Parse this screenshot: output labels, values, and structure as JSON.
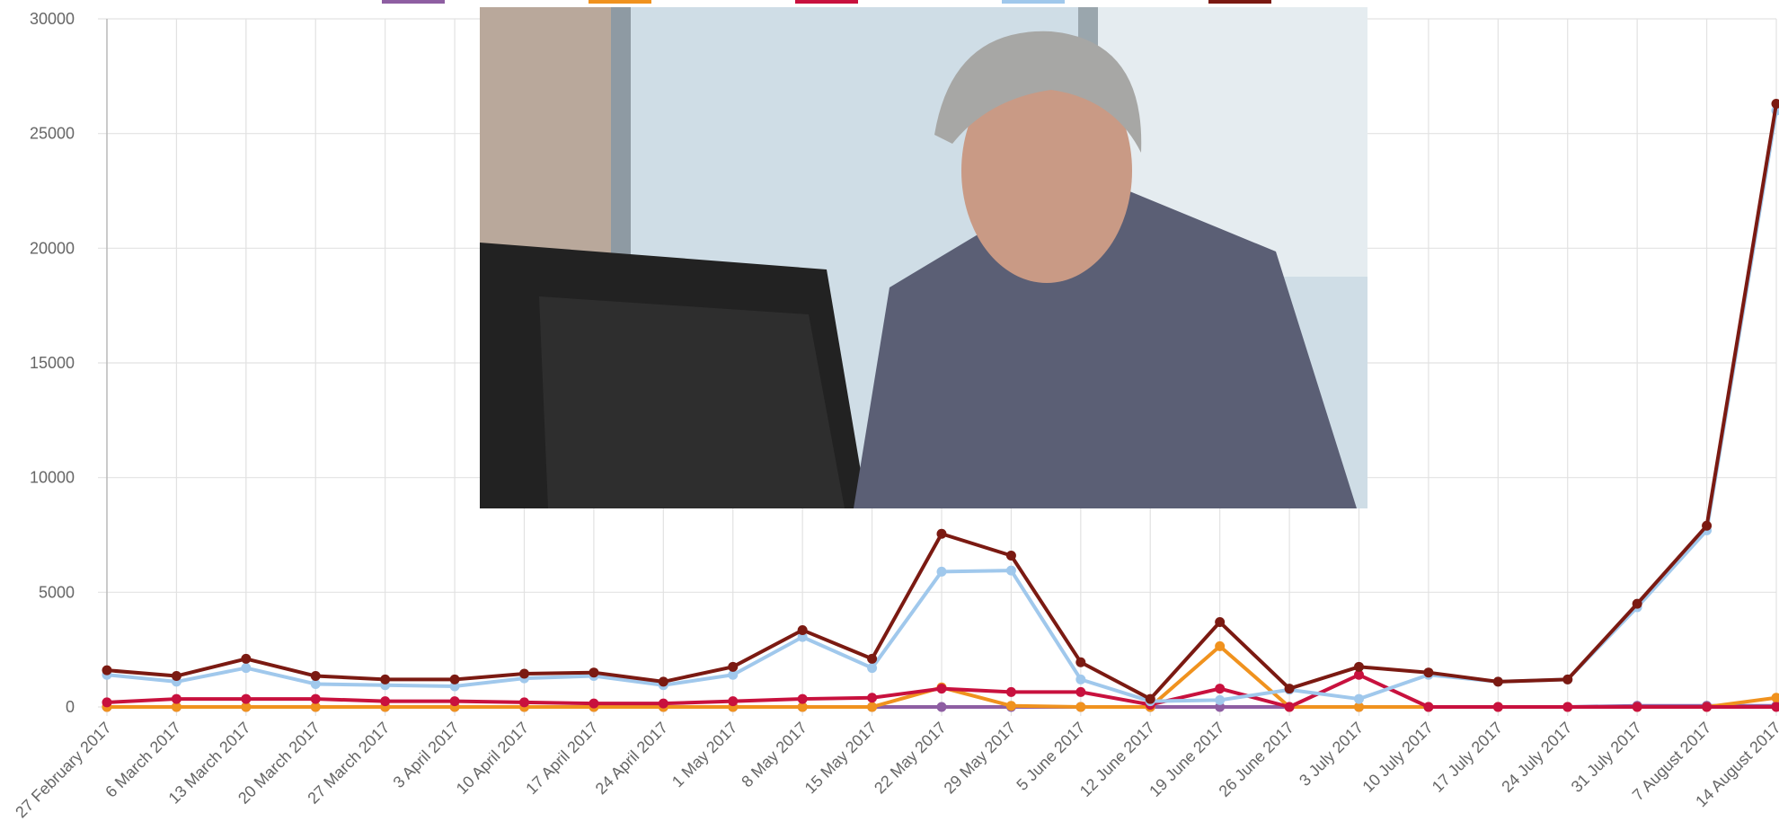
{
  "chart_data": {
    "type": "line",
    "categories": [
      "27 February 2017",
      "6 March 2017",
      "13 March 2017",
      "20 March 2017",
      "27 March 2017",
      "3 April 2017",
      "10 April 2017",
      "17 April 2017",
      "24 April 2017",
      "1 May 2017",
      "8 May 2017",
      "15 May 2017",
      "22 May 2017",
      "29 May 2017",
      "5 June 2017",
      "12 June 2017",
      "19 June 2017",
      "26 June 2017",
      "3 July 2017",
      "10 July 2017",
      "17 July 2017",
      "24 July 2017",
      "31 July 2017",
      "7 August 2017",
      "14 August 2017"
    ],
    "series": [
      {
        "color": "#8e5ea2",
        "values": [
          0,
          0,
          0,
          0,
          0,
          0,
          0,
          0,
          0,
          0,
          0,
          0,
          0,
          0,
          0,
          0,
          0,
          0,
          0,
          0,
          0,
          0,
          50,
          50,
          50
        ]
      },
      {
        "color": "#f0921e",
        "values": [
          0,
          0,
          0,
          0,
          0,
          0,
          0,
          0,
          0,
          0,
          0,
          0,
          850,
          50,
          0,
          0,
          2650,
          0,
          0,
          0,
          0,
          0,
          0,
          0,
          400
        ]
      },
      {
        "color": "#c8113e",
        "values": [
          200,
          350,
          350,
          350,
          250,
          250,
          200,
          150,
          150,
          250,
          350,
          400,
          800,
          650,
          650,
          100,
          800,
          0,
          1400,
          0,
          0,
          0,
          0,
          0,
          0
        ]
      },
      {
        "color": "#a0c8ec",
        "values": [
          1400,
          1100,
          1700,
          1000,
          950,
          900,
          1250,
          1350,
          950,
          1400,
          3050,
          1700,
          5900,
          5950,
          1200,
          250,
          300,
          750,
          350,
          1400,
          1100,
          1200,
          4350,
          7700,
          26000
        ]
      },
      {
        "color": "#7b1a12",
        "values": [
          1600,
          1350,
          2100,
          1350,
          1200,
          1200,
          1450,
          1500,
          1100,
          1750,
          3350,
          2100,
          7550,
          6600,
          1950,
          350,
          3700,
          800,
          1750,
          1500,
          1100,
          1200,
          4500,
          7900,
          26300
        ]
      }
    ],
    "ylim": [
      0,
      30000
    ],
    "yticks": [
      0,
      5000,
      10000,
      15000,
      20000,
      25000,
      30000
    ],
    "grid": true
  }
}
